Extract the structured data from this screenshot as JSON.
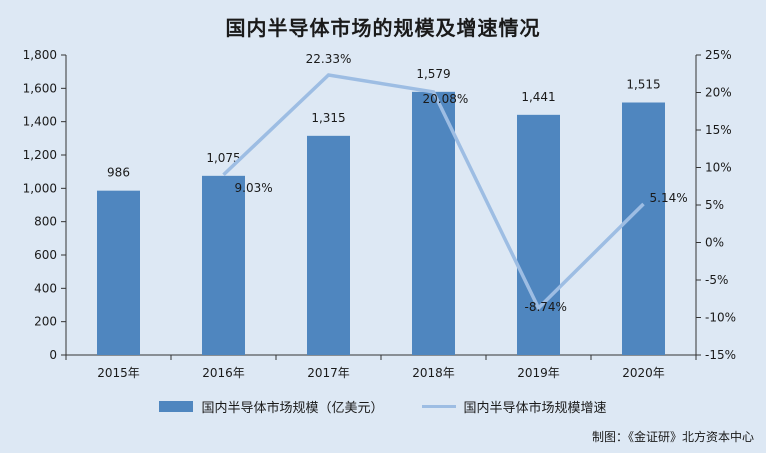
{
  "colors": {
    "bar": "#4f86bf",
    "line": "#9dbde3",
    "axis": "#333333",
    "background": "#dde8f4"
  },
  "chart_data": {
    "type": "bar",
    "title": "国内半导体市场的规模及增速情况",
    "categories": [
      "2015年",
      "2016年",
      "2017年",
      "2018年",
      "2019年",
      "2020年"
    ],
    "series": [
      {
        "name": "国内半导体市场规模（亿美元）",
        "type": "bar",
        "axis": "left",
        "values": [
          986,
          1075,
          1315,
          1579,
          1441,
          1515
        ],
        "labels": [
          "986",
          "1,075",
          "1,315",
          "1,579",
          "1,441",
          "1,515"
        ]
      },
      {
        "name": "国内半导体市场规模增速",
        "type": "line",
        "axis": "right",
        "values": [
          null,
          9.03,
          22.33,
          20.08,
          -8.74,
          5.14
        ],
        "labels": [
          "",
          "9.03%",
          "22.33%",
          "20.08%",
          "-8.74%",
          "5.14%"
        ]
      }
    ],
    "y_left": {
      "ylim": [
        0,
        1800
      ],
      "ticks": [
        0,
        200,
        400,
        600,
        800,
        1000,
        1200,
        1400,
        1600,
        1800
      ],
      "tick_labels": [
        "0",
        "200",
        "400",
        "600",
        "800",
        "1,000",
        "1,200",
        "1,400",
        "1,600",
        "1,800"
      ]
    },
    "y_right": {
      "ylim": [
        -15,
        25
      ],
      "ticks": [
        -15,
        -10,
        -5,
        0,
        5,
        10,
        15,
        20,
        25
      ],
      "tick_labels": [
        "-15%",
        "-10%",
        "-5%",
        "0%",
        "5%",
        "10%",
        "15%",
        "20%",
        "25%"
      ]
    },
    "grid": false,
    "legend_position": "bottom"
  },
  "source": "制图：《金证研》北方资本中心"
}
